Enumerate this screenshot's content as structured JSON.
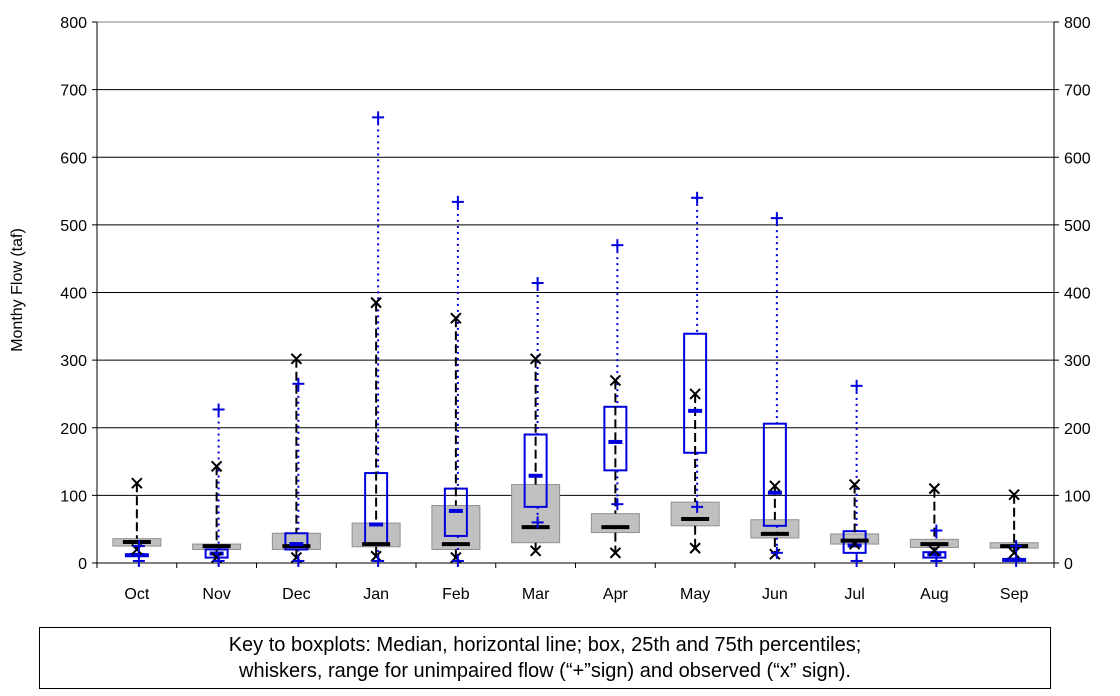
{
  "chart_data": {
    "type": "boxplot",
    "ylabel": "Monthy Flow (taf)",
    "ylim": [
      0,
      800
    ],
    "yticks": [
      0,
      100,
      200,
      300,
      400,
      500,
      600,
      700,
      800
    ],
    "grid": true,
    "categories": [
      "Oct",
      "Nov",
      "Dec",
      "Jan",
      "Feb",
      "Mar",
      "Apr",
      "May",
      "Jun",
      "Jul",
      "Aug",
      "Sep"
    ],
    "series": [
      {
        "name": "Observed",
        "mark": "x",
        "color": "#000000",
        "box_fill": "#c0c0c0",
        "data": [
          {
            "min": 20,
            "q1": 25,
            "median": 31,
            "q3": 36,
            "max": 118
          },
          {
            "min": 8,
            "q1": 20,
            "median": 25,
            "q3": 28,
            "max": 143
          },
          {
            "min": 8,
            "q1": 20,
            "median": 25,
            "q3": 44,
            "max": 302
          },
          {
            "min": 10,
            "q1": 24,
            "median": 28,
            "q3": 59,
            "max": 385
          },
          {
            "min": 8,
            "q1": 20,
            "median": 28,
            "q3": 85,
            "max": 362
          },
          {
            "min": 18,
            "q1": 30,
            "median": 53,
            "q3": 116,
            "max": 302
          },
          {
            "min": 15,
            "q1": 45,
            "median": 53,
            "q3": 73,
            "max": 270
          },
          {
            "min": 22,
            "q1": 55,
            "median": 65,
            "q3": 90,
            "max": 250
          },
          {
            "min": 13,
            "q1": 37,
            "median": 43,
            "q3": 64,
            "max": 114
          },
          {
            "min": 28,
            "q1": 28,
            "median": 33,
            "q3": 43,
            "max": 116
          },
          {
            "min": 18,
            "q1": 23,
            "median": 28,
            "q3": 35,
            "max": 110
          },
          {
            "min": 15,
            "q1": 22,
            "median": 25,
            "q3": 30,
            "max": 101
          }
        ]
      },
      {
        "name": "Unimpaired",
        "mark": "+",
        "color": "#0000dd",
        "data": [
          {
            "min": 3,
            "q1": 10,
            "median": 12,
            "q3": 13,
            "max": 25
          },
          {
            "min": 3,
            "q1": 8,
            "median": 14,
            "q3": 20,
            "max": 227
          },
          {
            "min": 3,
            "q1": 20,
            "median": 28,
            "q3": 44,
            "max": 265
          },
          {
            "min": 3,
            "q1": 28,
            "median": 57,
            "q3": 133,
            "max": 659
          },
          {
            "min": 3,
            "q1": 40,
            "median": 77,
            "q3": 110,
            "max": 534
          },
          {
            "min": 60,
            "q1": 83,
            "median": 129,
            "q3": 190,
            "max": 414
          },
          {
            "min": 87,
            "q1": 137,
            "median": 179,
            "q3": 231,
            "max": 470
          },
          {
            "min": 83,
            "q1": 163,
            "median": 225,
            "q3": 339,
            "max": 540
          },
          {
            "min": 15,
            "q1": 55,
            "median": 104,
            "q3": 206,
            "max": 510
          },
          {
            "min": 3,
            "q1": 15,
            "median": 26,
            "q3": 47,
            "max": 262
          },
          {
            "min": 3,
            "q1": 8,
            "median": 13,
            "q3": 16,
            "max": 48
          },
          {
            "min": 3,
            "q1": 5,
            "median": 5,
            "q3": 6,
            "max": 25
          }
        ]
      }
    ]
  },
  "key_text": {
    "line1": "Key to boxplots: Median, horizontal line; box, 25th and 75th percentiles;",
    "line2": "whiskers, range for unimpaired flow (“+”sign) and observed (“x” sign)."
  }
}
